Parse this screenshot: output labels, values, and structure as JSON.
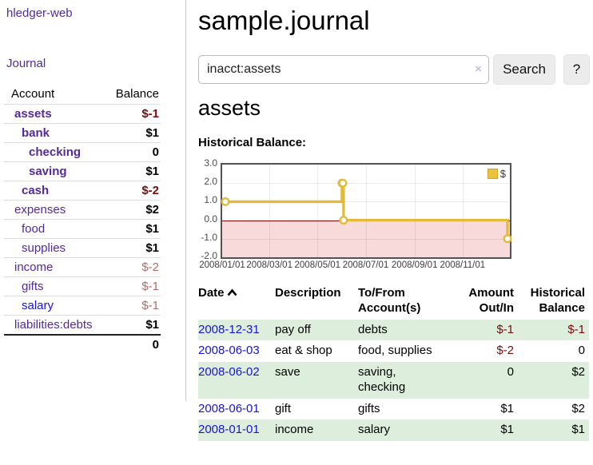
{
  "app": {
    "brand": "hledger-web",
    "nav_journal": "Journal"
  },
  "sidebar": {
    "columns": {
      "account": "Account",
      "balance": "Balance"
    },
    "accounts": [
      {
        "name": "assets",
        "balance": "$-1",
        "indent": 0,
        "bold": true,
        "neg": "strong"
      },
      {
        "name": "bank",
        "balance": "$1",
        "indent": 1,
        "bold": true,
        "neg": "none"
      },
      {
        "name": "checking",
        "balance": "0",
        "indent": 2,
        "bold": true,
        "neg": "none"
      },
      {
        "name": "saving",
        "balance": "$1",
        "indent": 2,
        "bold": true,
        "neg": "none"
      },
      {
        "name": "cash",
        "balance": "$-2",
        "indent": 1,
        "bold": true,
        "neg": "strong"
      },
      {
        "name": "expenses",
        "balance": "$2",
        "indent": 0,
        "bold": false,
        "neg": "none"
      },
      {
        "name": "food",
        "balance": "$1",
        "indent": 1,
        "bold": false,
        "neg": "none"
      },
      {
        "name": "supplies",
        "balance": "$1",
        "indent": 1,
        "bold": false,
        "neg": "none"
      },
      {
        "name": "income",
        "balance": "$-2",
        "indent": 0,
        "bold": false,
        "neg": "muted"
      },
      {
        "name": "gifts",
        "balance": "$-1",
        "indent": 1,
        "bold": false,
        "neg": "muted"
      },
      {
        "name": "salary",
        "balance": "$-1",
        "indent": 1,
        "bold": false,
        "neg": "muted",
        "blue": true
      },
      {
        "name": "liabilities:debts",
        "balance": "$1",
        "indent": 0,
        "bold": false,
        "neg": "none"
      }
    ],
    "total": "0"
  },
  "header": {
    "title": "sample.journal"
  },
  "search": {
    "value": "inacct:assets",
    "clear_icon": "×",
    "button_label": "Search",
    "help_label": "?"
  },
  "account_page": {
    "heading": "assets",
    "chart_label": "Historical Balance:"
  },
  "chart_data": {
    "type": "line",
    "step": true,
    "title": "Historical Balance:",
    "series": [
      {
        "name": "$",
        "color": "#e3bb3c",
        "points": [
          [
            "2008-01-01",
            1
          ],
          [
            "2008-06-01",
            2
          ],
          [
            "2008-06-02",
            2
          ],
          [
            "2008-06-03",
            0
          ],
          [
            "2008-12-31",
            -1
          ]
        ]
      }
    ],
    "ylim": [
      -2,
      3
    ],
    "yticks": [
      "3.0",
      "2.0",
      "1.0",
      "0.0",
      "-1.0",
      "-2.0"
    ],
    "xticks": [
      "2008/01/01",
      "2008/03/01",
      "2008/05/01",
      "2008/07/01",
      "2008/09/01",
      "2008/11/01"
    ],
    "legend": {
      "label": "$",
      "position": "top-right"
    },
    "negative_region_color": "#f9dada",
    "zero_line_color": "#8b0000",
    "grid": true
  },
  "register": {
    "columns": [
      {
        "line1": "Date",
        "line2": "",
        "sortable": true
      },
      {
        "line1": "Description",
        "line2": ""
      },
      {
        "line1": "To/From",
        "line2": "Account(s)"
      },
      {
        "line1": "Amount",
        "line2": "Out/In"
      },
      {
        "line1": "Historical",
        "line2": "Balance"
      }
    ],
    "rows": [
      {
        "date": "2008-12-31",
        "description": "pay off",
        "accounts": "debts",
        "amount": "$-1",
        "balance": "$-1"
      },
      {
        "date": "2008-06-03",
        "description": "eat & shop",
        "accounts": "food, supplies",
        "amount": "$-2",
        "balance": "0"
      },
      {
        "date": "2008-06-02",
        "description": "save",
        "accounts": "saving, checking",
        "amount": "0",
        "balance": "$2"
      },
      {
        "date": "2008-06-01",
        "description": "gift",
        "accounts": "gifts",
        "amount": "$1",
        "balance": "$2"
      },
      {
        "date": "2008-01-01",
        "description": "income",
        "accounts": "salary",
        "amount": "$1",
        "balance": "$1"
      }
    ]
  }
}
